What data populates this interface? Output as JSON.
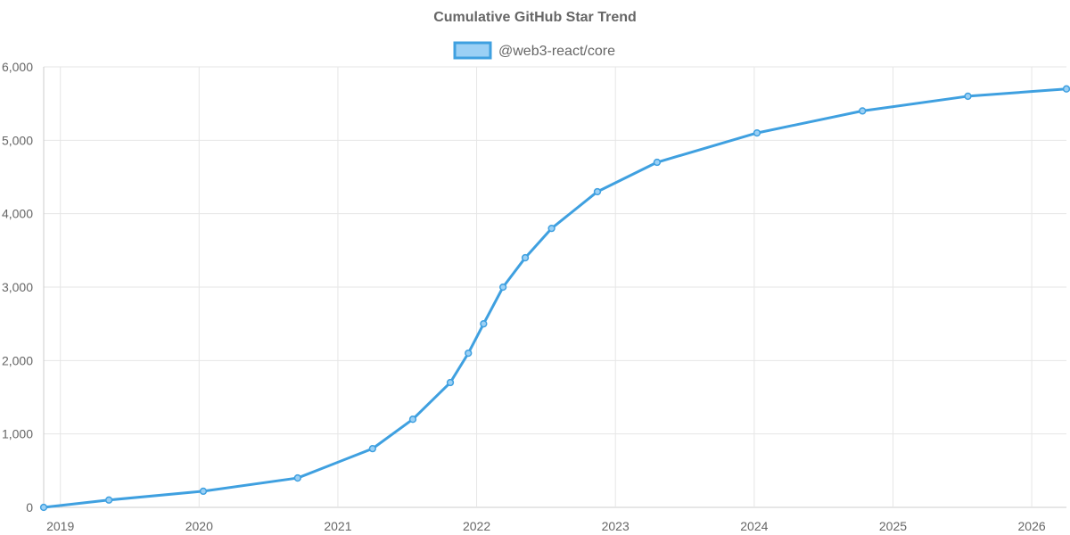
{
  "chart_data": {
    "type": "line",
    "title": "Cumulative GitHub Star Trend",
    "xlabel": "",
    "ylabel": "",
    "x_axis": {
      "type": "time",
      "min": 2018.88,
      "max": 2026.25,
      "ticks": [
        2019,
        2020,
        2021,
        2022,
        2023,
        2024,
        2025,
        2026
      ],
      "tick_labels": [
        "2019",
        "2020",
        "2021",
        "2022",
        "2023",
        "2024",
        "2025",
        "2026"
      ]
    },
    "y_axis": {
      "min": 0,
      "max": 6000,
      "ticks": [
        0,
        1000,
        2000,
        3000,
        4000,
        5000,
        6000
      ],
      "tick_labels": [
        "0",
        "1,000",
        "2,000",
        "3,000",
        "4,000",
        "5,000",
        "6,000"
      ]
    },
    "grid": true,
    "legend": {
      "placement": "top-center"
    },
    "series": [
      {
        "name": "@web3-react/core",
        "color": "#3fa0e0",
        "fill_color": "#9bd0f5",
        "points": [
          {
            "x": 2018.88,
            "y": 0
          },
          {
            "x": 2019.35,
            "y": 100
          },
          {
            "x": 2020.03,
            "y": 220
          },
          {
            "x": 2020.71,
            "y": 400
          },
          {
            "x": 2021.25,
            "y": 800
          },
          {
            "x": 2021.54,
            "y": 1200
          },
          {
            "x": 2021.81,
            "y": 1700
          },
          {
            "x": 2021.94,
            "y": 2100
          },
          {
            "x": 2022.05,
            "y": 2500
          },
          {
            "x": 2022.19,
            "y": 3000
          },
          {
            "x": 2022.35,
            "y": 3400
          },
          {
            "x": 2022.54,
            "y": 3800
          },
          {
            "x": 2022.87,
            "y": 4300
          },
          {
            "x": 2023.3,
            "y": 4700
          },
          {
            "x": 2024.02,
            "y": 5100
          },
          {
            "x": 2024.78,
            "y": 5400
          },
          {
            "x": 2025.54,
            "y": 5600
          },
          {
            "x": 2026.25,
            "y": 5700
          }
        ]
      }
    ]
  }
}
